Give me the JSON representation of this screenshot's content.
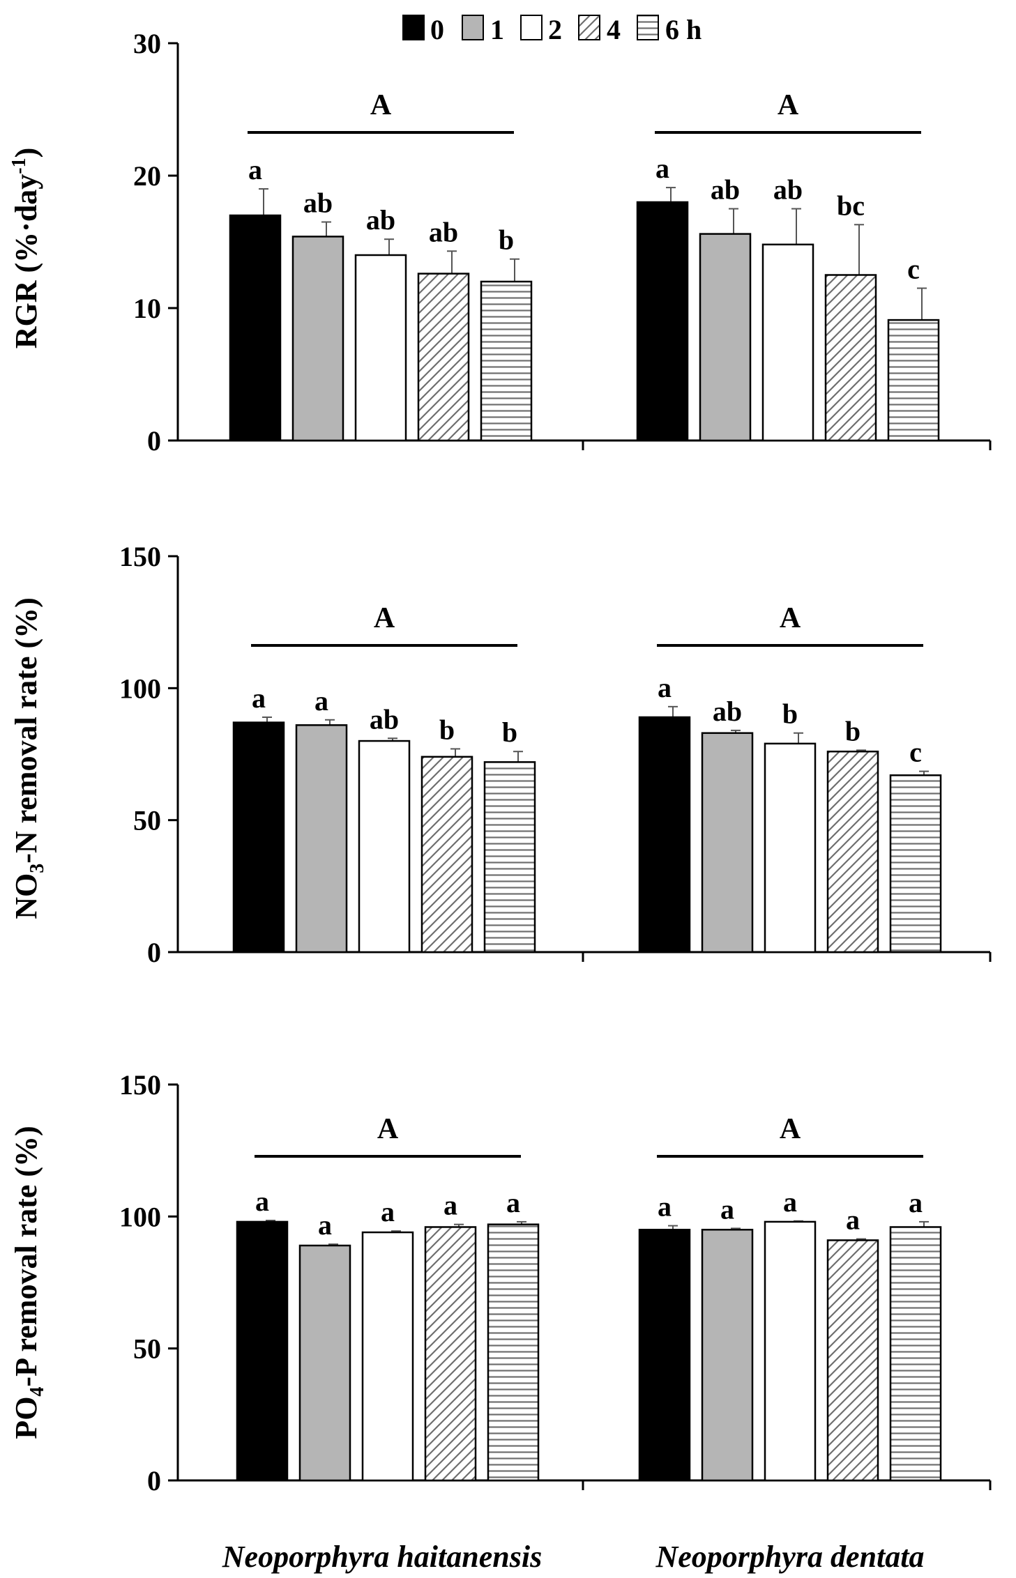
{
  "legend": {
    "items": [
      {
        "label": "0",
        "pattern": "solid-black"
      },
      {
        "label": "1",
        "pattern": "solid-gray"
      },
      {
        "label": "2",
        "pattern": "white"
      },
      {
        "label": "4",
        "pattern": "diagonal-hatch"
      },
      {
        "label": "6 h",
        "pattern": "horizontal-hatch"
      }
    ]
  },
  "colors": {
    "black": "#000000",
    "gray": "#b5b5b5",
    "white": "#ffffff"
  },
  "chart_data": [
    {
      "type": "bar",
      "title": "",
      "ylabel": "RGR (%·day⁻¹)",
      "ylim": [
        0,
        30
      ],
      "yticks": [
        0,
        10,
        20,
        30
      ],
      "categories": [
        "Neoporphyra haitanensis",
        "Neoporphyra dentata"
      ],
      "series": [
        {
          "name": "0",
          "values": [
            17.0,
            18.0
          ],
          "errors": [
            2.0,
            1.1
          ]
        },
        {
          "name": "1",
          "values": [
            15.4,
            15.6
          ],
          "errors": [
            1.1,
            1.9
          ]
        },
        {
          "name": "2",
          "values": [
            14.0,
            14.8
          ],
          "errors": [
            1.2,
            2.7
          ]
        },
        {
          "name": "4",
          "values": [
            12.6,
            12.5
          ],
          "errors": [
            1.7,
            3.8
          ]
        },
        {
          "name": "6 h",
          "values": [
            12.0,
            9.1
          ],
          "errors": [
            1.7,
            2.4
          ]
        }
      ],
      "letters": [
        [
          "a",
          "ab",
          "ab",
          "ab",
          "b"
        ],
        [
          "a",
          "ab",
          "ab",
          "bc",
          "c"
        ]
      ],
      "group_letters": [
        "A",
        "A"
      ]
    },
    {
      "type": "bar",
      "title": "",
      "ylabel": "NO₃-N removal rate (%)",
      "ylim": [
        0,
        150
      ],
      "yticks": [
        0,
        50,
        100,
        150
      ],
      "categories": [
        "Neoporphyra haitanensis",
        "Neoporphyra dentata"
      ],
      "series": [
        {
          "name": "0",
          "values": [
            87,
            89
          ],
          "errors": [
            2,
            4
          ]
        },
        {
          "name": "1",
          "values": [
            86,
            83
          ],
          "errors": [
            2,
            1
          ]
        },
        {
          "name": "2",
          "values": [
            80,
            79
          ],
          "errors": [
            1,
            4
          ]
        },
        {
          "name": "4",
          "values": [
            74,
            76
          ],
          "errors": [
            3,
            0.5
          ]
        },
        {
          "name": "6 h",
          "values": [
            72,
            67
          ],
          "errors": [
            4,
            1.5
          ]
        }
      ],
      "letters": [
        [
          "a",
          "a",
          "ab",
          "b",
          "b"
        ],
        [
          "a",
          "ab",
          "b",
          "b",
          "c"
        ]
      ],
      "group_letters": [
        "A",
        "A"
      ]
    },
    {
      "type": "bar",
      "title": "",
      "ylabel": "PO₄-P removal rate (%)",
      "ylim": [
        0,
        150
      ],
      "yticks": [
        0,
        50,
        100,
        150
      ],
      "categories": [
        "Neoporphyra haitanensis",
        "Neoporphyra dentata"
      ],
      "series": [
        {
          "name": "0",
          "values": [
            98,
            95
          ],
          "errors": [
            0.5,
            1.5
          ]
        },
        {
          "name": "1",
          "values": [
            89,
            95
          ],
          "errors": [
            0.5,
            0.5
          ]
        },
        {
          "name": "2",
          "values": [
            94,
            98
          ],
          "errors": [
            0.5,
            0.3
          ]
        },
        {
          "name": "4",
          "values": [
            96,
            91
          ],
          "errors": [
            1,
            0.5
          ]
        },
        {
          "name": "6 h",
          "values": [
            97,
            96
          ],
          "errors": [
            1,
            2
          ]
        }
      ],
      "letters": [
        [
          "a",
          "a",
          "a",
          "a",
          "a"
        ],
        [
          "a",
          "a",
          "a",
          "a",
          "a"
        ]
      ],
      "group_letters": [
        "A",
        "A"
      ]
    }
  ]
}
